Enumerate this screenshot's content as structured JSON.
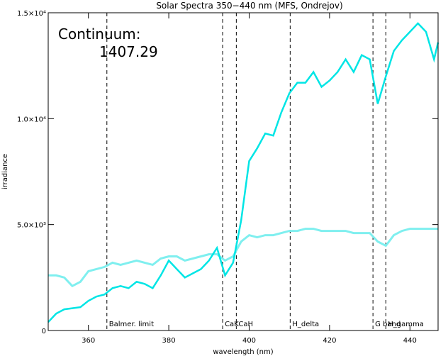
{
  "chart_data": {
    "type": "line",
    "title": "Solar Spectra 350−440 nm (MFS, Ondrejov)",
    "xlabel": "wavelength (nm)",
    "ylabel": "irradiance",
    "xlim": [
      350,
      447
    ],
    "ylim": [
      0,
      15000
    ],
    "x_ticks": [
      {
        "value": 360,
        "label": "360"
      },
      {
        "value": 380,
        "label": "380"
      },
      {
        "value": 400,
        "label": "400"
      },
      {
        "value": 420,
        "label": "420"
      },
      {
        "value": 440,
        "label": "440"
      }
    ],
    "y_ticks": [
      {
        "value": 0,
        "label": "0"
      },
      {
        "value": 5000,
        "label": "5.0×10³"
      },
      {
        "value": 10000,
        "label": "1.0×10⁴"
      },
      {
        "value": 15000,
        "label": "1.5×10⁴"
      }
    ],
    "annotation_label": "Continuum:",
    "annotation_value": "1407.29",
    "colors": {
      "observed": "#000000",
      "smoothed": "#00e5e5",
      "continuum": "#7fefef"
    },
    "lines": [
      {
        "x": 364.6,
        "label": "Balmer. limit"
      },
      {
        "x": 393.4,
        "label": "CaK"
      },
      {
        "x": 396.8,
        "label": "CaH"
      },
      {
        "x": 410.2,
        "label": "H_delta"
      },
      {
        "x": 430.8,
        "label": "G band"
      },
      {
        "x": 434.0,
        "label": "H_gamma"
      }
    ],
    "series": [
      {
        "x": [
          350,
          352,
          354,
          356,
          358,
          360,
          362,
          364,
          366,
          368,
          370,
          372,
          374,
          376,
          378,
          380,
          382,
          384,
          386,
          388,
          390,
          392,
          394,
          396,
          398,
          400,
          402,
          404,
          406,
          408,
          410,
          412,
          414,
          416,
          418,
          420,
          422,
          424,
          426,
          428,
          430,
          432,
          434,
          436,
          438,
          440,
          442,
          444,
          446,
          447
        ],
        "values": [
          400,
          800,
          1000,
          1050,
          1100,
          1400,
          1600,
          1700,
          2000,
          2100,
          2000,
          2300,
          2200,
          2000,
          2600,
          3300,
          2900,
          2500,
          2700,
          2900,
          3300,
          3900,
          2600,
          3200,
          5200,
          8000,
          8600,
          9300,
          9200,
          10300,
          11200,
          11700,
          11700,
          12200,
          11500,
          11800,
          12200,
          12800,
          12200,
          13000,
          12800,
          10700,
          12000,
          13200,
          13700,
          14100,
          14500,
          14100,
          12800,
          13600
        ]
      },
      {
        "x": [
          350,
          352,
          354,
          356,
          358,
          360,
          362,
          364,
          366,
          368,
          370,
          372,
          374,
          376,
          378,
          380,
          382,
          384,
          386,
          388,
          390,
          392,
          394,
          396,
          398,
          400,
          402,
          404,
          406,
          408,
          410,
          412,
          414,
          416,
          418,
          420,
          422,
          424,
          426,
          428,
          430,
          432,
          434,
          436,
          438,
          440,
          442,
          444,
          446,
          447
        ],
        "values": [
          2600,
          2600,
          2500,
          2100,
          2300,
          2800,
          2900,
          3000,
          3200,
          3100,
          3200,
          3300,
          3200,
          3100,
          3400,
          3500,
          3500,
          3300,
          3400,
          3500,
          3600,
          3600,
          3300,
          3500,
          4200,
          4500,
          4400,
          4500,
          4500,
          4600,
          4700,
          4700,
          4800,
          4800,
          4700,
          4700,
          4700,
          4700,
          4600,
          4600,
          4600,
          4200,
          4000,
          4500,
          4700,
          4800,
          4800,
          4800,
          4800,
          4800
        ]
      }
    ]
  }
}
